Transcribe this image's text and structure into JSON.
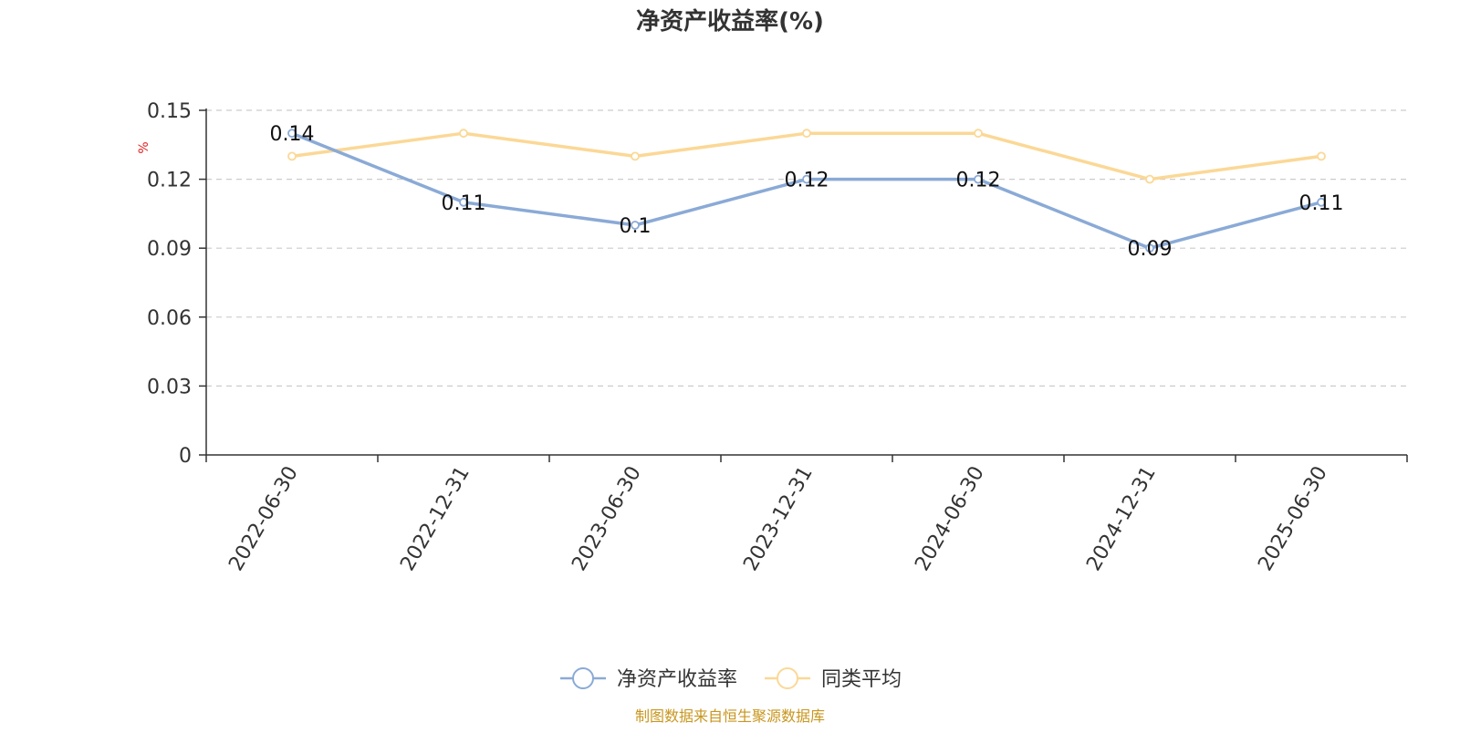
{
  "chart_data": {
    "type": "line",
    "title": "净资产收益率(%)",
    "ylabel": "%",
    "xlabel": "",
    "categories": [
      "2022-06-30",
      "2022-12-31",
      "2023-06-30",
      "2023-12-31",
      "2024-06-30",
      "2024-12-31",
      "2025-06-30"
    ],
    "ylim": [
      0,
      0.15
    ],
    "yticks": [
      "0",
      "0.03",
      "0.06",
      "0.09",
      "0.12",
      "0.15"
    ],
    "grid": true,
    "legend_position": "bottom-center",
    "series": [
      {
        "name": "净资产收益率",
        "values": [
          0.14,
          0.11,
          0.1,
          0.12,
          0.12,
          0.09,
          0.11
        ],
        "labels": [
          "0.14",
          "0.11",
          "0.1",
          "0.12",
          "0.12",
          "0.09",
          "0.11"
        ],
        "color": "#8aaad6",
        "show_labels": true
      },
      {
        "name": "同类平均",
        "values": [
          0.13,
          0.14,
          0.13,
          0.14,
          0.14,
          0.12,
          0.13
        ],
        "color": "#fbd896",
        "show_labels": false
      }
    ]
  },
  "source_note": "制图数据来自恒生聚源数据库",
  "colors": {
    "ylabel": "#e02020",
    "source_note": "#c8961e",
    "axis": "#333333",
    "grid": "#cccccc",
    "text": "#333333"
  }
}
